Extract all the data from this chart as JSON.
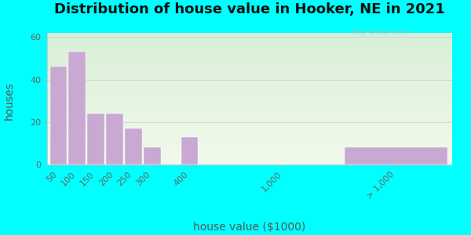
{
  "title": "Distribution of house value in Hooker, NE in 2021",
  "xlabel": "house value ($1000)",
  "ylabel": "houses",
  "bar_labels": [
    "50",
    "100",
    "150",
    "200",
    "250",
    "300",
    "400",
    "1,000",
    "> 1,000"
  ],
  "bar_values": [
    46,
    53,
    24,
    24,
    17,
    8,
    13,
    0,
    8
  ],
  "bar_color": "#c9a8d4",
  "bg_color_outer": "#00ffff",
  "bg_top": "#e8f5e0",
  "bg_bottom": "#f0faf0",
  "ylim": [
    0,
    62
  ],
  "yticks": [
    0,
    20,
    40,
    60
  ],
  "watermark": "City-Data.com",
  "title_fontsize": 13,
  "label_fontsize": 10,
  "tick_fontsize": 8,
  "x_positions": [
    0,
    1,
    2,
    3,
    4,
    5,
    7,
    12,
    18
  ],
  "bar_widths": [
    0.9,
    0.9,
    0.9,
    0.9,
    0.9,
    0.9,
    0.9,
    0.01,
    5.5
  ],
  "xlim": [
    -0.6,
    21
  ]
}
